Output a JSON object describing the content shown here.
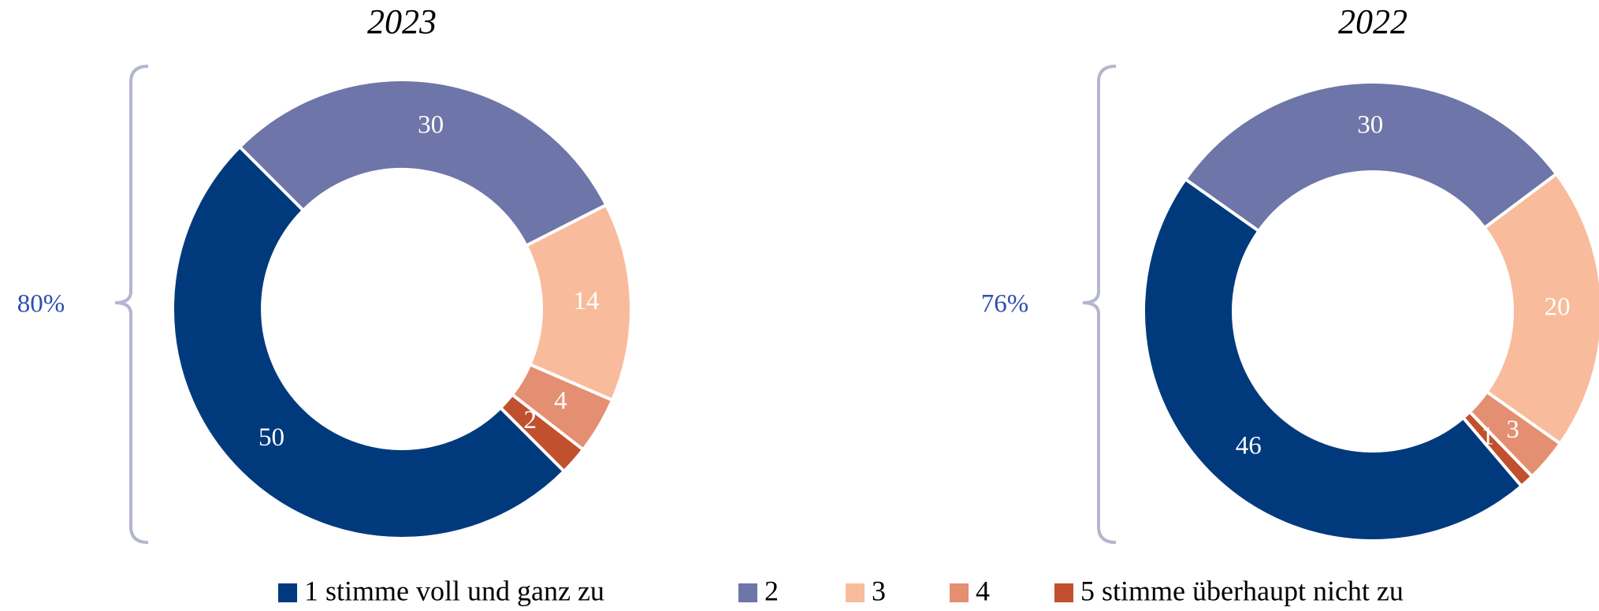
{
  "legend": {
    "categories": [
      "1 stimme voll und ganz zu",
      "2",
      "3",
      "4",
      "5 stimme überhaupt nicht zu"
    ],
    "colors": [
      "#003a7d",
      "#6e75a8",
      "#f8bc9c",
      "#e48f72",
      "#c0502e"
    ]
  },
  "chart_data": [
    {
      "type": "pie",
      "title": "2023",
      "values": [
        50,
        30,
        14,
        4,
        2
      ],
      "annotation": "80%"
    },
    {
      "type": "pie",
      "title": "2022",
      "values": [
        46,
        30,
        20,
        3,
        1
      ],
      "annotation": "76%"
    }
  ]
}
